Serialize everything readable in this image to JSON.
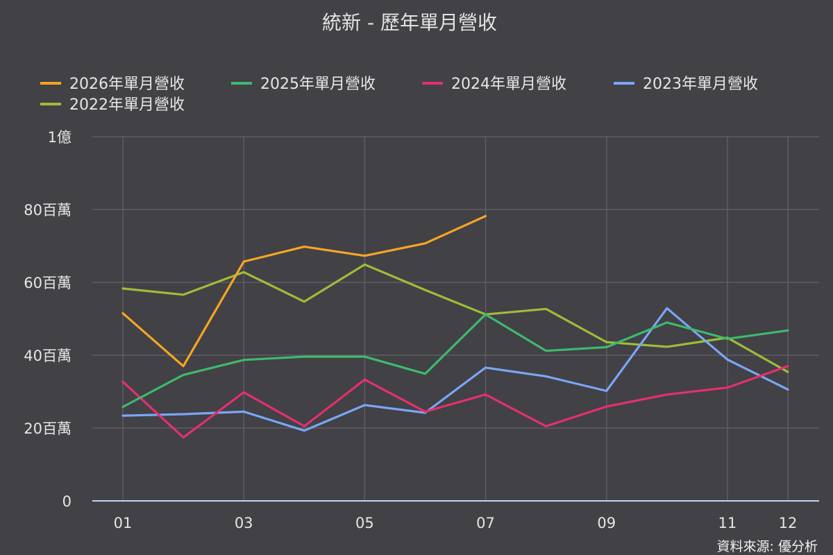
{
  "chart_data": {
    "type": "line",
    "title": "統新 - 歷年單月營收",
    "source": "資料來源: 優分析",
    "x_ticks": [
      "01",
      "03",
      "05",
      "07",
      "09",
      "11",
      "12"
    ],
    "y_ticks": [
      {
        "value": 0,
        "label": "0"
      },
      {
        "value": 20,
        "label": "20百萬"
      },
      {
        "value": 40,
        "label": "40百萬"
      },
      {
        "value": 60,
        "label": "60百萬"
      },
      {
        "value": 80,
        "label": "80百萬"
      },
      {
        "value": 100,
        "label": "1億"
      }
    ],
    "ylim": [
      0,
      100
    ],
    "xlim": [
      1,
      12
    ],
    "y_unit": "百萬",
    "grid": true,
    "legend_position": "top",
    "series": [
      {
        "name": "2026年單月營收",
        "color": "#f6a623",
        "x": [
          1,
          2,
          3,
          4,
          5,
          6,
          7
        ],
        "values": [
          51.5,
          37,
          65.7,
          69.8,
          67.3,
          70.7,
          78.2
        ]
      },
      {
        "name": "2025年單月營收",
        "color": "#3dba6e",
        "x": [
          1,
          2,
          3,
          4,
          5,
          6,
          7,
          8,
          9,
          10,
          11,
          12
        ],
        "values": [
          25.8,
          34.6,
          38.7,
          39.6,
          39.6,
          34.9,
          51.2,
          41.2,
          42.2,
          49.0,
          44.5,
          46.8
        ]
      },
      {
        "name": "2024年單月營收",
        "color": "#e4306e",
        "x": [
          1,
          2,
          3,
          4,
          5,
          6,
          7,
          8,
          9,
          10,
          11,
          12
        ],
        "values": [
          32.7,
          17.4,
          29.8,
          20.5,
          33.3,
          24.5,
          29.2,
          20.5,
          25.9,
          29.2,
          31.1,
          37.0
        ]
      },
      {
        "name": "2023年單月營收",
        "color": "#7aa7f7",
        "x": [
          1,
          2,
          3,
          4,
          5,
          6,
          7,
          8,
          9,
          10,
          11,
          12
        ],
        "values": [
          23.4,
          23.8,
          24.5,
          19.3,
          26.3,
          24.2,
          36.6,
          34.2,
          30.2,
          52.9,
          38.8,
          30.6
        ]
      },
      {
        "name": "2022年單月營收",
        "color": "#9fbc38",
        "x": [
          1,
          2,
          3,
          4,
          5,
          6,
          7,
          8,
          9,
          10,
          11,
          12
        ],
        "values": [
          58.3,
          56.6,
          62.8,
          54.7,
          64.9,
          57.9,
          51.2,
          52.7,
          43.6,
          42.3,
          44.8,
          35.4
        ]
      }
    ]
  }
}
